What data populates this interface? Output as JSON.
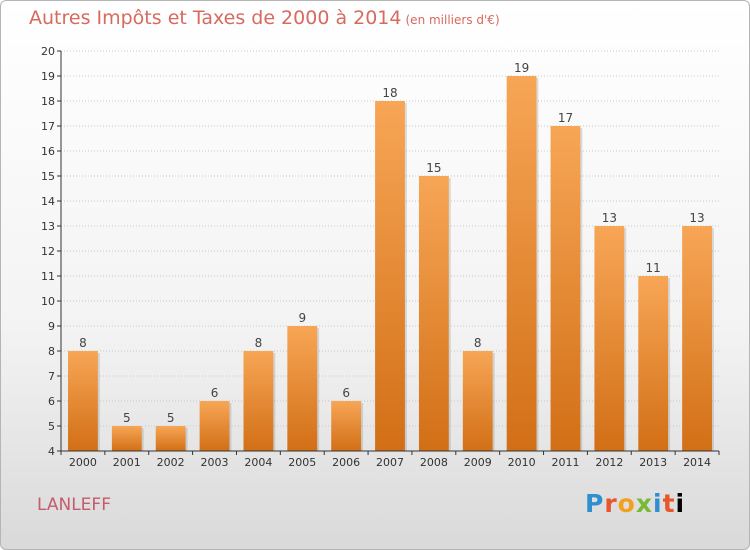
{
  "header": {
    "title": "Autres Impôts et Taxes de 2000 à 2014",
    "subtitle": "(en milliers d'€)"
  },
  "footer": {
    "city": "LANLEFF",
    "logo_letters": [
      "P",
      "r",
      "o",
      "x",
      "i",
      "t",
      "i"
    ]
  },
  "colors": {
    "title": "#d76a5e",
    "city": "#c45b6e",
    "bar_light": "#f7a656",
    "bar_dark": "#d26f16",
    "grid": "#c8c8c8",
    "axis": "#333333"
  },
  "chart_data": {
    "type": "bar",
    "title": "Autres Impôts et Taxes de 2000 à 2014",
    "subtitle": "(en milliers d'€)",
    "xlabel": "",
    "ylabel": "",
    "categories": [
      "2000",
      "2001",
      "2002",
      "2003",
      "2004",
      "2005",
      "2006",
      "2007",
      "2008",
      "2009",
      "2010",
      "2011",
      "2012",
      "2013",
      "2014"
    ],
    "values": [
      8,
      5,
      5,
      6,
      8,
      9,
      6,
      18,
      15,
      8,
      19,
      17,
      13,
      11,
      13
    ],
    "ylim": [
      4,
      20
    ],
    "yticks": [
      4,
      5,
      6,
      7,
      8,
      9,
      10,
      11,
      12,
      13,
      14,
      15,
      16,
      17,
      18,
      19,
      20
    ],
    "grid": true,
    "data_labels": true
  }
}
